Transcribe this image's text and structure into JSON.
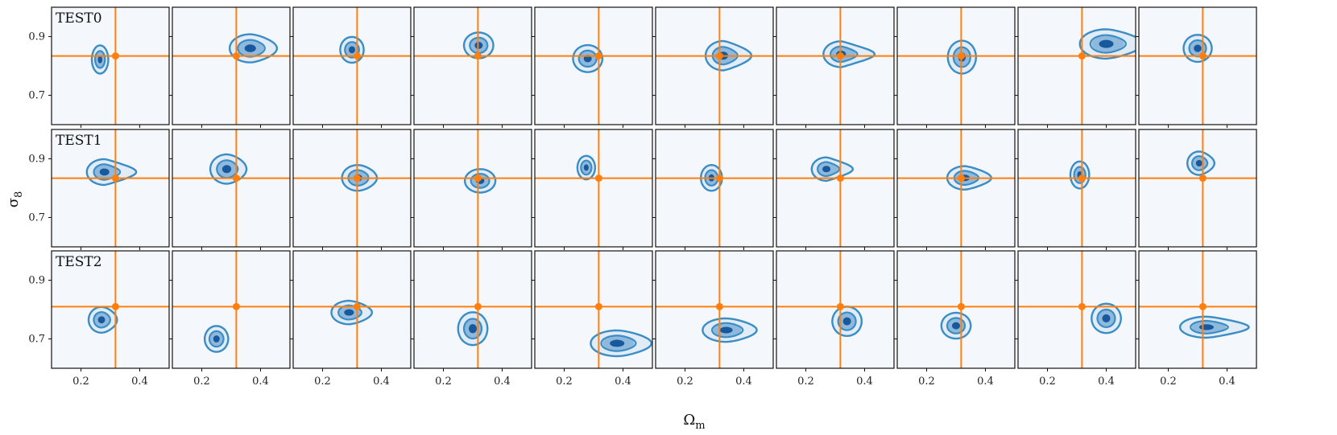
{
  "figure": {
    "xlabel": "Ω",
    "xlabel_sub": "m",
    "ylabel": "σ",
    "ylabel_sub": "8"
  },
  "chart_data": {
    "type": "contour-grid",
    "xlim": [
      0.1,
      0.5
    ],
    "ylim": [
      0.6,
      1.0
    ],
    "xticks": [
      0.2,
      0.4
    ],
    "xtick_labels": [
      "0.2",
      "0.4"
    ],
    "yticks": [
      0.7,
      0.9
    ],
    "ytick_labels": [
      "0.7",
      "0.9"
    ],
    "grid": false,
    "colors": {
      "background": "#f4f8fd",
      "contour": "#3a8dc5",
      "contour_fill_light": "#c9ddf0",
      "core_mid": "#4a90c8",
      "core_dark": "#0b4e96",
      "truth": "#ff7f0e"
    },
    "rows": [
      {
        "label": "TEST0",
        "truth": {
          "x": 0.3175,
          "y": 0.834
        },
        "panels": [
          {
            "mx": 0.265,
            "my": 0.822,
            "sx": 0.014,
            "sy": 0.024,
            "skew": 0
          },
          {
            "mx": 0.365,
            "my": 0.86,
            "sx": 0.035,
            "sy": 0.024,
            "skew": 0.3
          },
          {
            "mx": 0.3,
            "my": 0.855,
            "sx": 0.02,
            "sy": 0.022,
            "skew": 0
          },
          {
            "mx": 0.32,
            "my": 0.87,
            "sx": 0.025,
            "sy": 0.022,
            "skew": 0
          },
          {
            "mx": 0.28,
            "my": 0.825,
            "sx": 0.025,
            "sy": 0.023,
            "skew": 0
          },
          {
            "mx": 0.33,
            "my": 0.835,
            "sx": 0.03,
            "sy": 0.025,
            "skew": 0.6
          },
          {
            "mx": 0.32,
            "my": 0.84,
            "sx": 0.03,
            "sy": 0.022,
            "skew": 0.9
          },
          {
            "mx": 0.32,
            "my": 0.83,
            "sx": 0.024,
            "sy": 0.028,
            "skew": 0
          },
          {
            "mx": 0.4,
            "my": 0.875,
            "sx": 0.045,
            "sy": 0.025,
            "skew": 0.4
          },
          {
            "mx": 0.3,
            "my": 0.86,
            "sx": 0.024,
            "sy": 0.023,
            "skew": 0
          }
        ]
      },
      {
        "label": "TEST1",
        "truth": {
          "x": 0.3175,
          "y": 0.834
        },
        "panels": [
          {
            "mx": 0.28,
            "my": 0.855,
            "sx": 0.03,
            "sy": 0.022,
            "skew": 0.8
          },
          {
            "mx": 0.285,
            "my": 0.865,
            "sx": 0.028,
            "sy": 0.025,
            "skew": 0.2
          },
          {
            "mx": 0.32,
            "my": 0.835,
            "sx": 0.027,
            "sy": 0.022,
            "skew": 0.2
          },
          {
            "mx": 0.325,
            "my": 0.825,
            "sx": 0.026,
            "sy": 0.02,
            "skew": 0
          },
          {
            "mx": 0.275,
            "my": 0.87,
            "sx": 0.015,
            "sy": 0.02,
            "skew": 0
          },
          {
            "mx": 0.29,
            "my": 0.835,
            "sx": 0.018,
            "sy": 0.022,
            "skew": 0
          },
          {
            "mx": 0.27,
            "my": 0.865,
            "sx": 0.025,
            "sy": 0.02,
            "skew": 0.8
          },
          {
            "mx": 0.33,
            "my": 0.835,
            "sx": 0.03,
            "sy": 0.02,
            "skew": 0.5
          },
          {
            "mx": 0.31,
            "my": 0.845,
            "sx": 0.016,
            "sy": 0.023,
            "skew": 0
          },
          {
            "mx": 0.305,
            "my": 0.885,
            "sx": 0.02,
            "sy": 0.02,
            "skew": 0.3
          }
        ]
      },
      {
        "label": "TEST2",
        "truth": {
          "x": 0.3175,
          "y": 0.81
        },
        "panels": [
          {
            "mx": 0.27,
            "my": 0.765,
            "sx": 0.022,
            "sy": 0.022,
            "skew": 0.2
          },
          {
            "mx": 0.25,
            "my": 0.7,
            "sx": 0.02,
            "sy": 0.022,
            "skew": 0
          },
          {
            "mx": 0.29,
            "my": 0.79,
            "sx": 0.03,
            "sy": 0.02,
            "skew": 0.3
          },
          {
            "mx": 0.3,
            "my": 0.735,
            "sx": 0.025,
            "sy": 0.028,
            "skew": 0
          },
          {
            "mx": 0.38,
            "my": 0.685,
            "sx": 0.045,
            "sy": 0.022,
            "skew": 0.3
          },
          {
            "mx": 0.34,
            "my": 0.73,
            "sx": 0.04,
            "sy": 0.02,
            "skew": 0.3
          },
          {
            "mx": 0.34,
            "my": 0.76,
            "sx": 0.025,
            "sy": 0.025,
            "skew": 0
          },
          {
            "mx": 0.3,
            "my": 0.745,
            "sx": 0.025,
            "sy": 0.022,
            "skew": 0
          },
          {
            "mx": 0.4,
            "my": 0.77,
            "sx": 0.025,
            "sy": 0.025,
            "skew": 0
          },
          {
            "mx": 0.33,
            "my": 0.74,
            "sx": 0.045,
            "sy": 0.018,
            "skew": 0.6
          }
        ]
      }
    ]
  }
}
